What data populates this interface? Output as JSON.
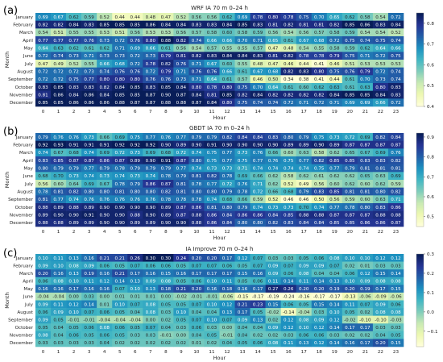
{
  "chart_data": [
    {
      "type": "heatmap",
      "panel_label": "(a)",
      "title": "WRF IA 70 m 0–24 h",
      "xlabel": "Hour",
      "ylabel": "Month",
      "x": [
        "0",
        "1",
        "2",
        "3",
        "4",
        "5",
        "6",
        "7",
        "8",
        "9",
        "10",
        "11",
        "12",
        "13",
        "14",
        "15",
        "16",
        "17",
        "18",
        "19",
        "20",
        "21",
        "22",
        "23"
      ],
      "y": [
        "January",
        "February",
        "March",
        "April",
        "May",
        "June",
        "July",
        "August",
        "September",
        "October",
        "November",
        "December"
      ],
      "colorscale": "YlGnBu",
      "zlim": [
        0.4,
        0.85
      ],
      "colorbar_ticks": [
        0.4,
        0.5,
        0.6,
        0.7,
        0.8
      ],
      "values": [
        [
          0.69,
          0.67,
          0.62,
          0.59,
          0.52,
          0.44,
          0.44,
          0.48,
          0.47,
          0.52,
          0.56,
          0.56,
          0.62,
          0.69,
          0.78,
          0.8,
          0.78,
          0.75,
          0.7,
          0.65,
          0.62,
          0.58,
          0.54,
          0.72
        ],
        [
          0.82,
          0.82,
          0.84,
          0.83,
          0.85,
          0.85,
          0.85,
          0.86,
          0.84,
          0.84,
          0.83,
          0.83,
          0.84,
          0.85,
          0.83,
          0.81,
          0.82,
          0.81,
          0.81,
          0.82,
          0.85,
          0.86,
          0.83,
          0.84
        ],
        [
          0.54,
          0.51,
          0.55,
          0.55,
          0.53,
          0.51,
          0.56,
          0.53,
          0.53,
          0.56,
          0.57,
          0.58,
          0.6,
          0.58,
          0.59,
          0.56,
          0.54,
          0.56,
          0.57,
          0.58,
          0.59,
          0.54,
          0.54,
          0.52
        ],
        [
          0.77,
          0.77,
          0.77,
          0.76,
          0.73,
          0.72,
          0.76,
          0.8,
          0.88,
          0.82,
          0.74,
          0.66,
          0.66,
          0.7,
          0.71,
          0.65,
          0.61,
          0.67,
          0.68,
          0.72,
          0.75,
          0.74,
          0.75,
          0.74
        ],
        [
          0.64,
          0.63,
          0.62,
          0.61,
          0.62,
          0.71,
          0.69,
          0.66,
          0.61,
          0.56,
          0.54,
          0.57,
          0.55,
          0.55,
          0.57,
          0.47,
          0.48,
          0.54,
          0.55,
          0.58,
          0.59,
          0.62,
          0.64,
          0.66
        ],
        [
          0.72,
          0.74,
          0.73,
          0.71,
          0.73,
          0.73,
          0.72,
          0.73,
          0.79,
          0.81,
          0.82,
          0.83,
          0.84,
          0.84,
          0.83,
          0.81,
          0.82,
          0.78,
          0.78,
          0.79,
          0.75,
          0.71,
          0.72,
          0.75
        ],
        [
          0.47,
          0.49,
          0.52,
          0.55,
          0.66,
          0.68,
          0.72,
          0.78,
          0.82,
          0.76,
          0.71,
          0.67,
          0.6,
          0.55,
          0.48,
          0.47,
          0.46,
          0.44,
          0.41,
          0.46,
          0.51,
          0.53,
          0.53,
          0.53
        ],
        [
          0.72,
          0.72,
          0.72,
          0.73,
          0.74,
          0.76,
          0.76,
          0.72,
          0.79,
          0.71,
          0.76,
          0.76,
          0.66,
          0.61,
          0.67,
          0.68,
          0.82,
          0.83,
          0.8,
          0.75,
          0.76,
          0.79,
          0.72,
          0.74
        ],
        [
          0.72,
          0.72,
          0.75,
          0.77,
          0.8,
          0.8,
          0.8,
          0.76,
          0.76,
          0.73,
          0.71,
          0.64,
          0.61,
          0.57,
          0.46,
          0.5,
          0.34,
          0.38,
          0.41,
          0.44,
          0.61,
          0.7,
          0.73,
          0.74
        ],
        [
          0.83,
          0.85,
          0.83,
          0.83,
          0.82,
          0.84,
          0.85,
          0.83,
          0.85,
          0.84,
          0.8,
          0.78,
          0.8,
          0.75,
          0.7,
          0.64,
          0.61,
          0.6,
          0.62,
          0.63,
          0.61,
          0.63,
          0.8,
          0.83
        ],
        [
          0.81,
          0.86,
          0.84,
          0.86,
          0.84,
          0.85,
          0.85,
          0.87,
          0.9,
          0.87,
          0.84,
          0.81,
          0.85,
          0.82,
          0.84,
          0.82,
          0.82,
          0.82,
          0.82,
          0.84,
          0.85,
          0.85,
          0.84,
          0.83
        ],
        [
          0.85,
          0.85,
          0.86,
          0.86,
          0.86,
          0.88,
          0.87,
          0.87,
          0.88,
          0.88,
          0.87,
          0.84,
          0.8,
          0.75,
          0.74,
          0.74,
          0.72,
          0.71,
          0.72,
          0.71,
          0.69,
          0.69,
          0.66,
          0.72
        ]
      ]
    },
    {
      "type": "heatmap",
      "panel_label": "(b)",
      "title": "GBDT IA 70 m 0–24 h",
      "xlabel": "Hour",
      "ylabel": "Month",
      "x": [
        "0",
        "1",
        "2",
        "3",
        "4",
        "5",
        "6",
        "7",
        "8",
        "9",
        "10",
        "11",
        "12",
        "13",
        "14",
        "15",
        "16",
        "17",
        "18",
        "19",
        "20",
        "21",
        "22",
        "23"
      ],
      "y": [
        "January",
        "February",
        "March",
        "April",
        "May",
        "June",
        "July",
        "August",
        "September",
        "October",
        "November",
        "December"
      ],
      "colorscale": "YlGnBu",
      "zlim": [
        0.45,
        0.92
      ],
      "colorbar_ticks": [
        0.5,
        0.6,
        0.7,
        0.8,
        0.9
      ],
      "values": [
        [
          0.79,
          0.76,
          0.76,
          0.73,
          0.66,
          0.69,
          0.75,
          0.77,
          0.76,
          0.77,
          0.79,
          0.79,
          0.82,
          0.84,
          0.84,
          0.83,
          0.8,
          0.79,
          0.75,
          0.73,
          0.72,
          0.69,
          0.82,
          0.84
        ],
        [
          0.92,
          0.93,
          0.91,
          0.91,
          0.91,
          0.92,
          0.92,
          0.92,
          0.9,
          0.89,
          0.9,
          0.91,
          0.9,
          0.9,
          0.9,
          0.9,
          0.89,
          0.89,
          0.9,
          0.89,
          0.87,
          0.87,
          0.87,
          0.87
        ],
        [
          0.74,
          0.67,
          0.68,
          0.74,
          0.69,
          0.72,
          0.73,
          0.69,
          0.68,
          0.72,
          0.74,
          0.75,
          0.77,
          0.73,
          0.76,
          0.66,
          0.6,
          0.63,
          0.58,
          0.62,
          0.65,
          0.67,
          0.69,
          0.76
        ],
        [
          0.83,
          0.85,
          0.87,
          0.87,
          0.86,
          0.87,
          0.89,
          0.9,
          0.91,
          0.87,
          0.8,
          0.75,
          0.77,
          0.75,
          0.77,
          0.76,
          0.75,
          0.77,
          0.82,
          0.85,
          0.85,
          0.83,
          0.83,
          0.82
        ],
        [
          0.8,
          0.79,
          0.79,
          0.77,
          0.79,
          0.78,
          0.79,
          0.79,
          0.79,
          0.77,
          0.74,
          0.73,
          0.73,
          0.71,
          0.74,
          0.74,
          0.74,
          0.74,
          0.75,
          0.77,
          0.79,
          0.81,
          0.81,
          0.81
        ],
        [
          0.68,
          0.7,
          0.73,
          0.74,
          0.73,
          0.74,
          0.73,
          0.74,
          0.78,
          0.79,
          0.81,
          0.82,
          0.78,
          0.69,
          0.66,
          0.62,
          0.58,
          0.62,
          0.61,
          0.62,
          0.62,
          0.65,
          0.63,
          0.69
        ],
        [
          0.56,
          0.6,
          0.64,
          0.69,
          0.67,
          0.78,
          0.79,
          0.86,
          0.87,
          0.81,
          0.78,
          0.77,
          0.72,
          0.76,
          0.71,
          0.62,
          0.52,
          0.49,
          0.56,
          0.6,
          0.62,
          0.6,
          0.62,
          0.59
        ],
        [
          0.78,
          0.81,
          0.82,
          0.8,
          0.8,
          0.81,
          0.8,
          0.8,
          0.82,
          0.81,
          0.8,
          0.8,
          0.79,
          0.78,
          0.72,
          0.66,
          0.68,
          0.79,
          0.83,
          0.85,
          0.81,
          0.81,
          0.8,
          0.82
        ],
        [
          0.81,
          0.77,
          0.74,
          0.76,
          0.76,
          0.76,
          0.76,
          0.76,
          0.78,
          0.78,
          0.78,
          0.74,
          0.68,
          0.66,
          0.59,
          0.52,
          0.46,
          0.46,
          0.5,
          0.56,
          0.59,
          0.6,
          0.63,
          0.71
        ],
        [
          0.88,
          0.89,
          0.88,
          0.89,
          0.9,
          0.9,
          0.9,
          0.9,
          0.89,
          0.87,
          0.86,
          0.81,
          0.8,
          0.79,
          0.74,
          0.73,
          0.73,
          0.7,
          0.74,
          0.77,
          0.78,
          0.8,
          0.83,
          0.86
        ],
        [
          0.89,
          0.9,
          0.9,
          0.91,
          0.9,
          0.9,
          0.88,
          0.9,
          0.89,
          0.87,
          0.88,
          0.86,
          0.84,
          0.86,
          0.86,
          0.84,
          0.85,
          0.88,
          0.88,
          0.87,
          0.87,
          0.87,
          0.88,
          0.88
        ],
        [
          0.88,
          0.88,
          0.89,
          0.89,
          0.9,
          0.9,
          0.89,
          0.89,
          0.9,
          0.9,
          0.88,
          0.86,
          0.84,
          0.8,
          0.8,
          0.82,
          0.83,
          0.84,
          0.84,
          0.85,
          0.85,
          0.86,
          0.86,
          0.87
        ]
      ]
    },
    {
      "type": "heatmap",
      "panel_label": "(c)",
      "title": "IA Improve 70 m 0–24 h",
      "xlabel": "Hour",
      "ylabel": "Month",
      "x": [
        "0",
        "1",
        "2",
        "3",
        "4",
        "5",
        "6",
        "7",
        "8",
        "9",
        "10",
        "11",
        "12",
        "13",
        "14",
        "15",
        "16",
        "17",
        "18",
        "19",
        "20",
        "21",
        "22",
        "23"
      ],
      "y": [
        "January",
        "February",
        "March",
        "April",
        "May",
        "June",
        "July",
        "August",
        "September",
        "October",
        "November",
        "December"
      ],
      "colorscale": "YlGnBu",
      "zlim": [
        -0.18,
        0.3
      ],
      "colorbar_ticks": [
        -0.1,
        0.0,
        0.1,
        0.2,
        0.3
      ],
      "values": [
        [
          0.1,
          0.11,
          0.13,
          0.16,
          0.21,
          0.21,
          0.26,
          0.3,
          0.3,
          0.24,
          0.2,
          0.2,
          0.17,
          0.12,
          0.07,
          0.03,
          0.03,
          0.05,
          0.06,
          0.08,
          0.1,
          0.1,
          0.12,
          0.12
        ],
        [
          0.09,
          0.1,
          0.08,
          0.09,
          0.06,
          0.05,
          0.07,
          0.06,
          0.06,
          0.05,
          0.07,
          0.07,
          0.06,
          0.05,
          0.07,
          0.09,
          0.07,
          0.09,
          0.09,
          0.07,
          0.02,
          0.01,
          0.03,
          0.03
        ],
        [
          0.2,
          0.16,
          0.13,
          0.19,
          0.16,
          0.21,
          0.17,
          0.16,
          0.15,
          0.16,
          0.17,
          0.17,
          0.17,
          0.15,
          0.16,
          0.09,
          0.06,
          0.08,
          0.04,
          0.04,
          0.06,
          0.12,
          0.15,
          0.14
        ],
        [
          0.06,
          0.08,
          0.1,
          0.11,
          0.12,
          0.14,
          0.13,
          0.09,
          0.08,
          0.05,
          0.06,
          0.1,
          0.11,
          0.05,
          0.06,
          0.11,
          0.14,
          0.11,
          0.14,
          0.13,
          0.1,
          0.09,
          0.08,
          0.08
        ],
        [
          0.16,
          0.16,
          0.17,
          0.16,
          0.16,
          0.07,
          0.1,
          0.13,
          0.18,
          0.21,
          0.2,
          0.16,
          0.18,
          0.16,
          0.17,
          0.27,
          0.26,
          0.2,
          0.2,
          0.19,
          0.2,
          0.19,
          0.17,
          0.15
        ],
        [
          -0.04,
          -0.04,
          0.0,
          0.03,
          0.0,
          0.01,
          0.01,
          0.01,
          0.0,
          -0.02,
          -0.01,
          -0.01,
          -0.06,
          -0.15,
          -0.17,
          -0.19,
          -0.24,
          -0.16,
          -0.17,
          -0.17,
          -0.13,
          -0.06,
          -0.09,
          -0.06
        ],
        [
          0.09,
          0.11,
          0.12,
          0.14,
          0.01,
          0.1,
          0.07,
          0.08,
          0.05,
          0.05,
          0.07,
          0.1,
          0.12,
          0.21,
          0.23,
          0.15,
          0.06,
          0.05,
          0.15,
          0.14,
          0.11,
          0.07,
          0.09,
          0.06
        ],
        [
          0.06,
          0.09,
          0.1,
          0.07,
          0.06,
          0.05,
          0.04,
          0.08,
          0.03,
          0.1,
          0.04,
          0.04,
          0.13,
          0.17,
          0.05,
          -0.02,
          -0.14,
          -0.04,
          0.03,
          0.1,
          0.05,
          0.02,
          0.08,
          0.08
        ],
        [
          0.09,
          0.05,
          -0.01,
          -0.01,
          -0.04,
          -0.04,
          -0.04,
          0.0,
          0.02,
          0.05,
          0.07,
          0.1,
          0.07,
          0.09,
          0.13,
          0.02,
          0.12,
          0.08,
          0.09,
          0.12,
          -0.02,
          -0.1,
          -0.1,
          -0.03
        ],
        [
          0.05,
          0.04,
          0.05,
          0.06,
          0.08,
          0.06,
          0.05,
          0.07,
          0.04,
          0.03,
          0.06,
          0.03,
          0.0,
          0.04,
          0.04,
          0.09,
          0.12,
          0.1,
          0.12,
          0.14,
          0.17,
          0.17,
          0.03,
          0.03
        ],
        [
          0.08,
          0.04,
          0.06,
          0.05,
          0.06,
          0.05,
          0.03,
          0.03,
          -0.01,
          0.0,
          0.04,
          0.05,
          -0.01,
          0.04,
          0.02,
          0.02,
          0.03,
          0.06,
          0.06,
          0.03,
          0.02,
          0.02,
          0.04,
          0.05
        ],
        [
          0.03,
          0.03,
          0.03,
          0.03,
          0.04,
          0.02,
          0.02,
          0.02,
          0.02,
          0.02,
          0.01,
          0.02,
          0.04,
          0.05,
          0.06,
          0.08,
          0.11,
          0.13,
          0.12,
          0.14,
          0.16,
          0.17,
          0.2,
          0.15
        ]
      ]
    }
  ]
}
